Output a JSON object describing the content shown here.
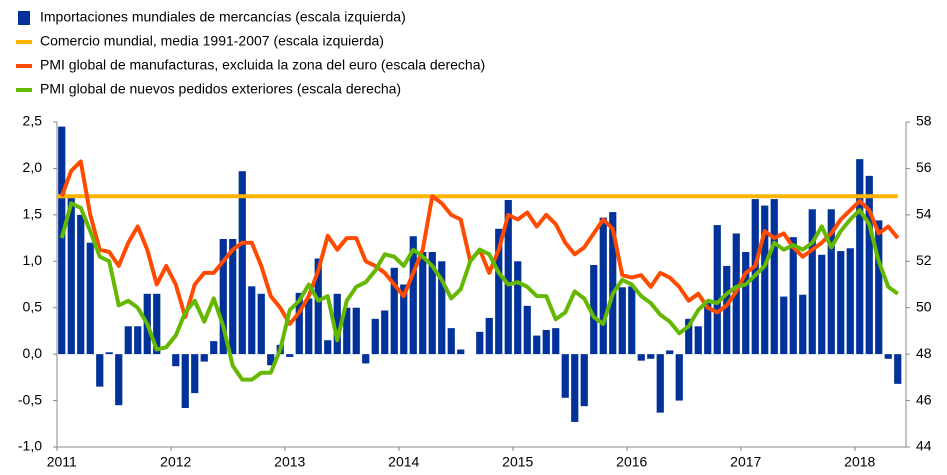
{
  "chart_data": {
    "type": "bar",
    "categories": [
      "2011",
      null,
      null,
      null,
      null,
      null,
      null,
      null,
      null,
      null,
      null,
      null,
      "2012",
      null,
      null,
      null,
      null,
      null,
      null,
      null,
      null,
      null,
      null,
      null,
      "2013",
      null,
      null,
      null,
      null,
      null,
      null,
      null,
      null,
      null,
      null,
      null,
      "2014",
      null,
      null,
      null,
      null,
      null,
      null,
      null,
      null,
      null,
      null,
      null,
      "2015",
      null,
      null,
      null,
      null,
      null,
      null,
      null,
      null,
      null,
      null,
      null,
      "2016",
      null,
      null,
      null,
      null,
      null,
      null,
      null,
      null,
      null,
      null,
      null,
      "2017",
      null,
      null,
      null,
      null,
      null,
      null,
      null,
      null,
      null,
      null,
      null,
      "2018",
      null,
      null,
      null,
      null
    ],
    "series": [
      {
        "name": "Importaciones mundiales de mercancías (escala izquierda)",
        "type": "bar",
        "color": "#003299",
        "values": [
          2.45,
          1.7,
          1.5,
          1.2,
          -0.35,
          0.02,
          -0.55,
          0.3,
          0.3,
          0.65,
          0.65,
          0.0,
          -0.13,
          -0.58,
          -0.42,
          -0.08,
          0.14,
          1.24,
          1.24,
          1.97,
          0.73,
          0.65,
          -0.12,
          0.1,
          -0.03,
          0.66,
          0.6,
          1.03,
          0.15,
          0.65,
          0.5,
          0.5,
          -0.1,
          0.38,
          0.47,
          0.93,
          0.75,
          1.27,
          1.1,
          1.1,
          1.0,
          0.28,
          0.05,
          0.0,
          0.24,
          0.39,
          1.35,
          1.66,
          1.0,
          0.52,
          0.2,
          0.26,
          0.28,
          -0.47,
          -0.73,
          -0.56,
          0.96,
          1.47,
          1.53,
          0.72,
          0.73,
          -0.07,
          -0.05,
          -0.63,
          0.04,
          -0.5,
          0.38,
          0.3,
          0.56,
          1.39,
          0.95,
          1.3,
          1.1,
          1.67,
          1.6,
          1.67,
          0.62,
          1.26,
          0.64,
          1.56,
          1.07,
          1.56,
          1.11,
          1.14,
          2.1,
          1.92,
          1.44,
          -0.05,
          -0.32
        ]
      },
      {
        "name": "Comercio mundial, media 1991-2007 (escala izquierda)",
        "type": "hline",
        "color": "#ffb400",
        "value": 1.7
      },
      {
        "name": "PMI global de manufacturas, excluida la zona del euro (escala derecha)",
        "type": "line",
        "color": "#ff4b00",
        "axis": "y2",
        "values": [
          54.8,
          55.9,
          56.3,
          54.0,
          52.5,
          52.4,
          51.8,
          52.8,
          53.5,
          52.5,
          51.0,
          51.8,
          51.0,
          49.6,
          51.0,
          51.5,
          51.5,
          52.0,
          52.5,
          52.8,
          52.8,
          51.8,
          50.5,
          50.0,
          49.3,
          49.8,
          50.5,
          51.6,
          53.1,
          52.5,
          53.0,
          53.0,
          52.0,
          51.8,
          51.5,
          51.0,
          50.5,
          51.5,
          52.5,
          54.8,
          54.5,
          54.0,
          53.8,
          52.0,
          52.5,
          51.5,
          52.5,
          54.0,
          53.8,
          54.1,
          53.5,
          54.0,
          53.6,
          52.8,
          52.3,
          52.6,
          53.2,
          53.8,
          53.4,
          51.4,
          51.3,
          51.4,
          50.9,
          51.5,
          51.3,
          50.9,
          50.3,
          50.6,
          50.0,
          49.8,
          50.1,
          50.7,
          51.5,
          51.8,
          53.3,
          53.0,
          53.2,
          52.6,
          52.2,
          52.5,
          52.8,
          53.2,
          53.8,
          54.2,
          54.6,
          54.2,
          53.2,
          53.5,
          53.0
        ]
      },
      {
        "name": "PMI global de nuevos pedidos exteriores (escala derecha)",
        "type": "line",
        "color": "#65b800",
        "axis": "y2",
        "values": [
          53.0,
          54.5,
          54.3,
          53.3,
          52.2,
          52.0,
          50.1,
          50.3,
          50.0,
          49.3,
          48.2,
          48.3,
          48.8,
          49.8,
          50.3,
          49.4,
          50.4,
          49.2,
          47.5,
          46.9,
          46.9,
          47.2,
          47.2,
          48.2,
          49.9,
          50.3,
          51.0,
          50.3,
          50.5,
          48.6,
          50.3,
          50.9,
          51.1,
          51.6,
          52.3,
          52.2,
          51.8,
          52.5,
          52.2,
          51.8,
          51.2,
          50.4,
          50.8,
          52.0,
          52.5,
          52.3,
          51.5,
          51.0,
          51.1,
          50.9,
          50.5,
          50.5,
          49.5,
          49.8,
          50.7,
          50.4,
          49.6,
          49.3,
          50.6,
          51.2,
          51.0,
          50.5,
          50.2,
          49.7,
          49.4,
          48.9,
          49.2,
          49.9,
          50.3,
          50.2,
          50.6,
          50.9,
          51.0,
          51.4,
          51.8,
          52.8,
          52.5,
          52.7,
          52.5,
          52.8,
          53.5,
          52.6,
          53.3,
          53.8,
          54.2,
          53.6,
          52.0,
          50.9,
          50.6
        ]
      }
    ],
    "ylim": [
      -1.0,
      2.5
    ],
    "yticks": [
      {
        "value": -1.0,
        "label": "-1,0"
      },
      {
        "value": -0.5,
        "label": "-0,5"
      },
      {
        "value": 0.0,
        "label": "0,0"
      },
      {
        "value": 0.5,
        "label": "0,5"
      },
      {
        "value": 1.0,
        "label": "1,0"
      },
      {
        "value": 1.5,
        "label": "1,5"
      },
      {
        "value": 2.0,
        "label": "2,0"
      },
      {
        "value": 2.5,
        "label": "2,5"
      }
    ],
    "y2lim": [
      44,
      58
    ],
    "y2ticks": [
      44,
      46,
      48,
      50,
      52,
      54,
      56,
      58
    ]
  }
}
